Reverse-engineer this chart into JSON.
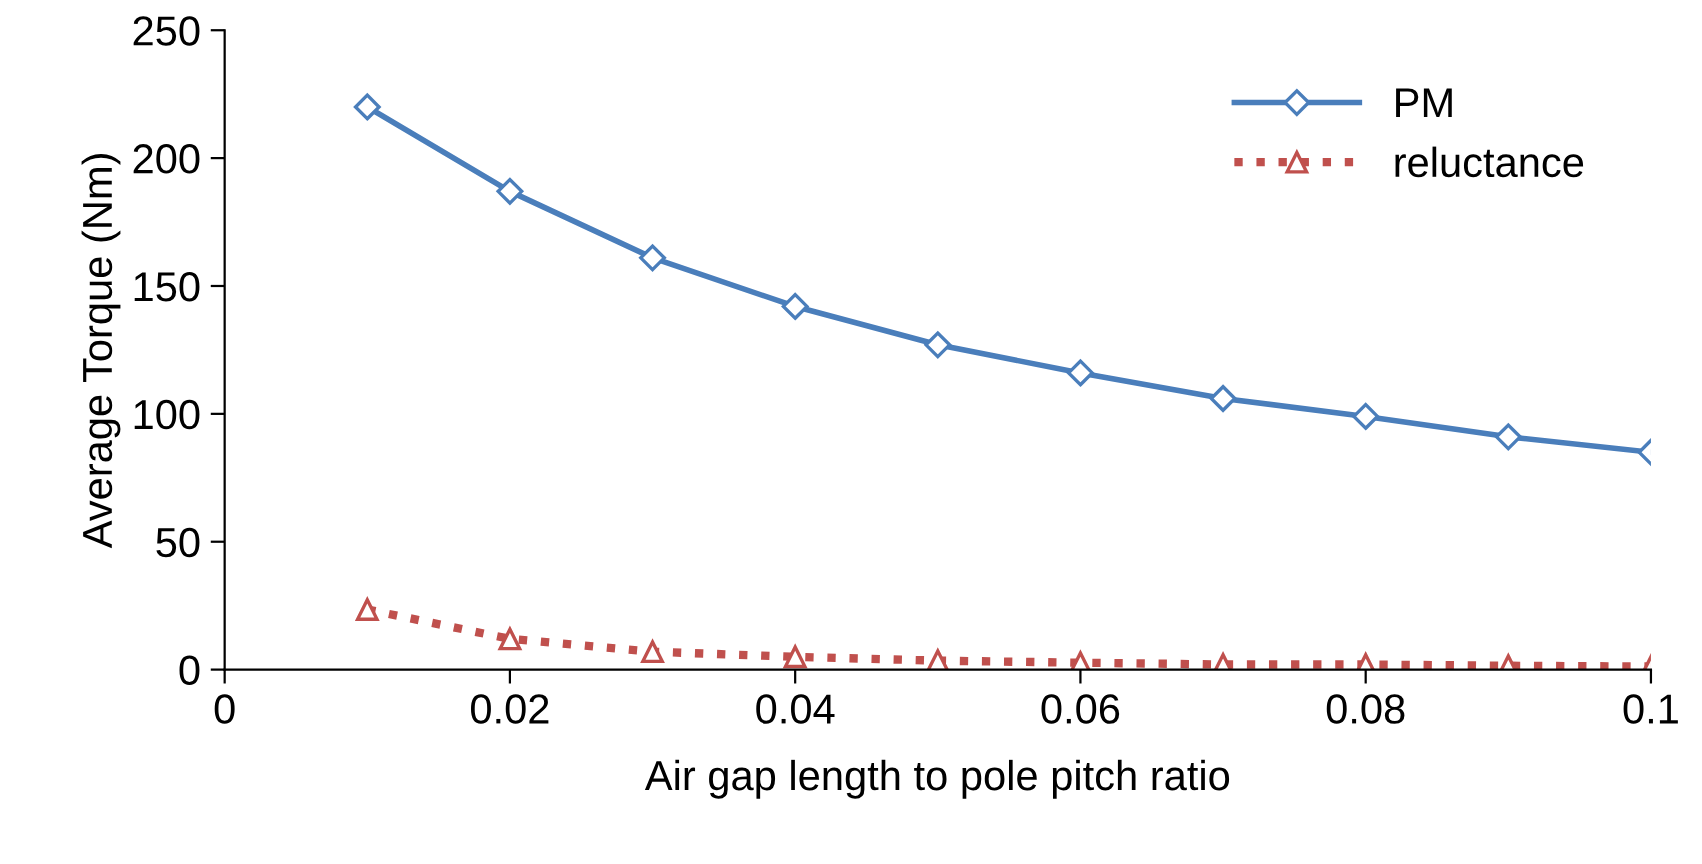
{
  "chart_data": {
    "type": "line",
    "xlabel": "Air gap length to pole pitch ratio",
    "ylabel": "Average Torque (Nm)",
    "x": [
      0.01,
      0.02,
      0.03,
      0.04,
      0.05,
      0.06,
      0.07,
      0.08,
      0.09,
      0.1
    ],
    "series": [
      {
        "name": "PM",
        "color": "#4a7ebb",
        "marker": "diamond",
        "line_style": "solid",
        "values": [
          220,
          187,
          161,
          142,
          127,
          116,
          106,
          99,
          91,
          85
        ]
      },
      {
        "name": "reluctance",
        "color": "#c0504d",
        "marker": "triangle",
        "line_style": "dotted",
        "values": [
          23.5,
          12,
          7,
          5,
          3.5,
          2.7,
          2,
          2,
          1.5,
          1.2
        ]
      }
    ],
    "xlim": [
      0,
      0.1
    ],
    "xticks": [
      0,
      0.02,
      0.04,
      0.06,
      0.08,
      0.1
    ],
    "ylim": [
      0,
      250
    ],
    "yticks": [
      0,
      50,
      100,
      150,
      200,
      250
    ],
    "grid": false,
    "legend": "top right"
  }
}
